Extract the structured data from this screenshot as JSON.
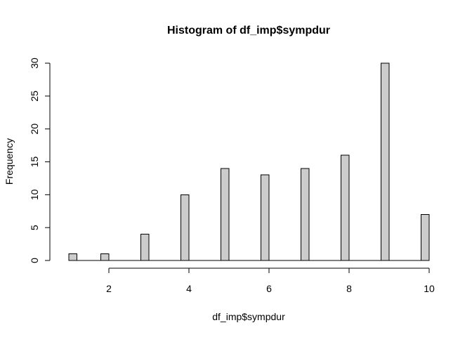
{
  "chart_data": {
    "type": "bar",
    "title": "Histogram of df_imp$sympdur",
    "xlabel": "df_imp$sympdur",
    "ylabel": "Frequency",
    "xlim": [
      1,
      10
    ],
    "ylim": [
      0,
      30
    ],
    "x_ticks": [
      2,
      4,
      6,
      8,
      10
    ],
    "y_ticks": [
      0,
      5,
      10,
      15,
      20,
      25,
      30
    ],
    "bin_width": 0.2,
    "x": [
      1.1,
      1.9,
      2.9,
      3.9,
      4.9,
      5.9,
      6.9,
      7.9,
      8.9,
      9.9
    ],
    "values": [
      1,
      1,
      4,
      10,
      14,
      13,
      14,
      16,
      30,
      7
    ],
    "bar_fill": "#cccccc",
    "bar_stroke": "#000000",
    "grid": false,
    "legend": "none"
  }
}
